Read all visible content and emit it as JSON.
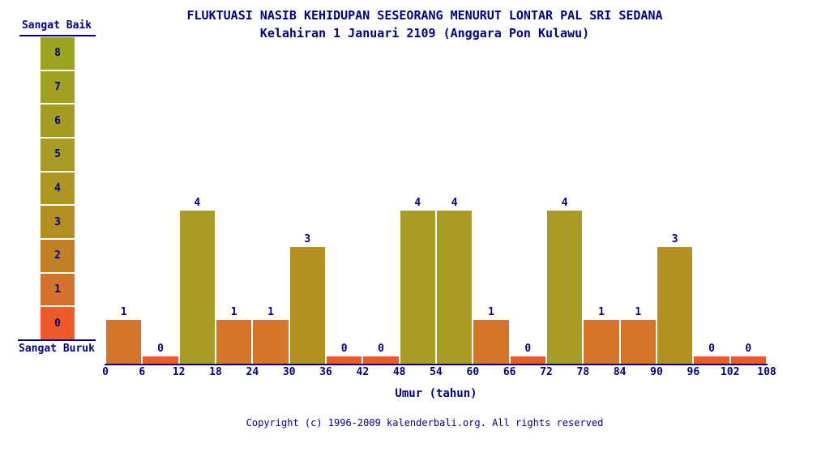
{
  "page": {
    "background": "#ffffff",
    "text_color": "#000084"
  },
  "chart_data": {
    "type": "bar",
    "title": "FLUKTUASI NASIB KEHIDUPAN SESEORANG MENURUT LONTAR PAL SRI SEDANA",
    "subtitle": "Kelahiran 1 Januari 2109 (Anggara Pon Kulawu)",
    "xlabel": "Umur (tahun)",
    "ylabel": "",
    "xlim": [
      0,
      108
    ],
    "ylim": [
      0,
      8
    ],
    "grid": false,
    "x_ticks": [
      0,
      6,
      12,
      18,
      24,
      30,
      36,
      42,
      48,
      54,
      60,
      66,
      72,
      78,
      84,
      90,
      96,
      102,
      108
    ],
    "bar_width_years": 6,
    "bars": [
      {
        "age_start": 0,
        "age_end": 6,
        "value": 1,
        "color": "#d6752a"
      },
      {
        "age_start": 6,
        "age_end": 12,
        "value": 0,
        "color": "#ee5a28"
      },
      {
        "age_start": 12,
        "age_end": 18,
        "value": 4,
        "color": "#a99b24"
      },
      {
        "age_start": 18,
        "age_end": 24,
        "value": 1,
        "color": "#d6752a"
      },
      {
        "age_start": 24,
        "age_end": 30,
        "value": 1,
        "color": "#d6752a"
      },
      {
        "age_start": 30,
        "age_end": 36,
        "value": 3,
        "color": "#b29120"
      },
      {
        "age_start": 36,
        "age_end": 42,
        "value": 0,
        "color": "#ee5a28"
      },
      {
        "age_start": 42,
        "age_end": 48,
        "value": 0,
        "color": "#ee5a28"
      },
      {
        "age_start": 48,
        "age_end": 54,
        "value": 4,
        "color": "#a99b24"
      },
      {
        "age_start": 54,
        "age_end": 60,
        "value": 4,
        "color": "#a99b24"
      },
      {
        "age_start": 60,
        "age_end": 66,
        "value": 1,
        "color": "#d6752a"
      },
      {
        "age_start": 66,
        "age_end": 72,
        "value": 0,
        "color": "#ee5a28"
      },
      {
        "age_start": 72,
        "age_end": 78,
        "value": 4,
        "color": "#a99b24"
      },
      {
        "age_start": 78,
        "age_end": 84,
        "value": 1,
        "color": "#d6752a"
      },
      {
        "age_start": 84,
        "age_end": 90,
        "value": 1,
        "color": "#d6752a"
      },
      {
        "age_start": 90,
        "age_end": 96,
        "value": 3,
        "color": "#b29120"
      },
      {
        "age_start": 96,
        "age_end": 102,
        "value": 0,
        "color": "#ee5a28"
      },
      {
        "age_start": 102,
        "age_end": 108,
        "value": 0,
        "color": "#ee5a28"
      }
    ],
    "legend": {
      "position": "left",
      "top_label": "Sangat Baik",
      "bottom_label": "Sangat Buruk",
      "levels": [
        {
          "value": 8,
          "color": "#9aa21e"
        },
        {
          "value": 7,
          "color": "#9f9f20"
        },
        {
          "value": 6,
          "color": "#a39c21"
        },
        {
          "value": 5,
          "color": "#a89a22"
        },
        {
          "value": 4,
          "color": "#ad9522"
        },
        {
          "value": 3,
          "color": "#b38e20"
        },
        {
          "value": 2,
          "color": "#c28026"
        },
        {
          "value": 1,
          "color": "#d3722a"
        },
        {
          "value": 0,
          "color": "#ee5a28"
        }
      ]
    }
  },
  "footer": {
    "copyright": "Copyright (c) 1996-2009 kalenderbali.org. All rights reserved"
  }
}
